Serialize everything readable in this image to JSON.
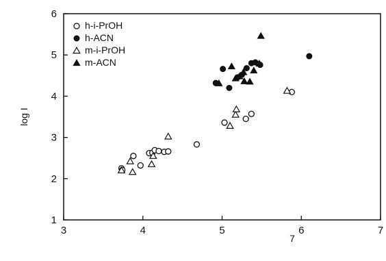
{
  "chart_data": {
    "type": "scatter",
    "title": "",
    "xlabel": "7",
    "ylabel": "log I",
    "xlim": [
      3,
      7
    ],
    "ylim": [
      1,
      6
    ],
    "x_ticks": [
      "3",
      "4",
      "5",
      "6",
      "7"
    ],
    "y_ticks": [
      "1",
      "2",
      "3",
      "4",
      "5",
      "6"
    ],
    "grid": false,
    "legend_position": "top-left",
    "series": [
      {
        "name": "h-i-PrOH",
        "marker": "open-circle",
        "color": "#111111",
        "points": [
          [
            3.73,
            2.25
          ],
          [
            3.74,
            2.21
          ],
          [
            3.88,
            2.55
          ],
          [
            3.97,
            2.32
          ],
          [
            4.08,
            2.62
          ],
          [
            4.12,
            2.63
          ],
          [
            4.15,
            2.69
          ],
          [
            4.2,
            2.67
          ],
          [
            4.27,
            2.65
          ],
          [
            4.32,
            2.66
          ],
          [
            4.68,
            2.83
          ],
          [
            5.03,
            3.36
          ],
          [
            5.3,
            3.45
          ],
          [
            5.37,
            3.57
          ],
          [
            5.88,
            4.1
          ]
        ]
      },
      {
        "name": "h-ACN",
        "marker": "filled-circle",
        "color": "#111111",
        "points": [
          [
            4.92,
            4.32
          ],
          [
            5.01,
            4.66
          ],
          [
            5.09,
            4.2
          ],
          [
            5.2,
            4.46
          ],
          [
            5.25,
            4.52
          ],
          [
            5.31,
            4.68
          ],
          [
            5.37,
            4.8
          ],
          [
            5.42,
            4.82
          ],
          [
            5.48,
            4.76
          ],
          [
            6.1,
            4.97
          ]
        ]
      },
      {
        "name": "m-i-PrOH",
        "marker": "open-triangle",
        "color": "#111111",
        "points": [
          [
            3.73,
            2.2
          ],
          [
            3.84,
            2.42
          ],
          [
            3.87,
            2.16
          ],
          [
            4.11,
            2.35
          ],
          [
            4.13,
            2.55
          ],
          [
            4.32,
            3.02
          ],
          [
            5.1,
            3.28
          ],
          [
            5.17,
            3.55
          ],
          [
            5.18,
            3.68
          ],
          [
            5.82,
            4.13
          ]
        ]
      },
      {
        "name": "m-ACN",
        "marker": "filled-triangle",
        "color": "#111111",
        "points": [
          [
            4.96,
            4.31
          ],
          [
            5.12,
            4.72
          ],
          [
            5.17,
            4.43
          ],
          [
            5.22,
            4.48
          ],
          [
            5.27,
            4.58
          ],
          [
            5.28,
            4.36
          ],
          [
            5.35,
            4.35
          ],
          [
            5.4,
            4.62
          ],
          [
            5.47,
            4.79
          ],
          [
            5.49,
            5.46
          ]
        ]
      }
    ]
  }
}
